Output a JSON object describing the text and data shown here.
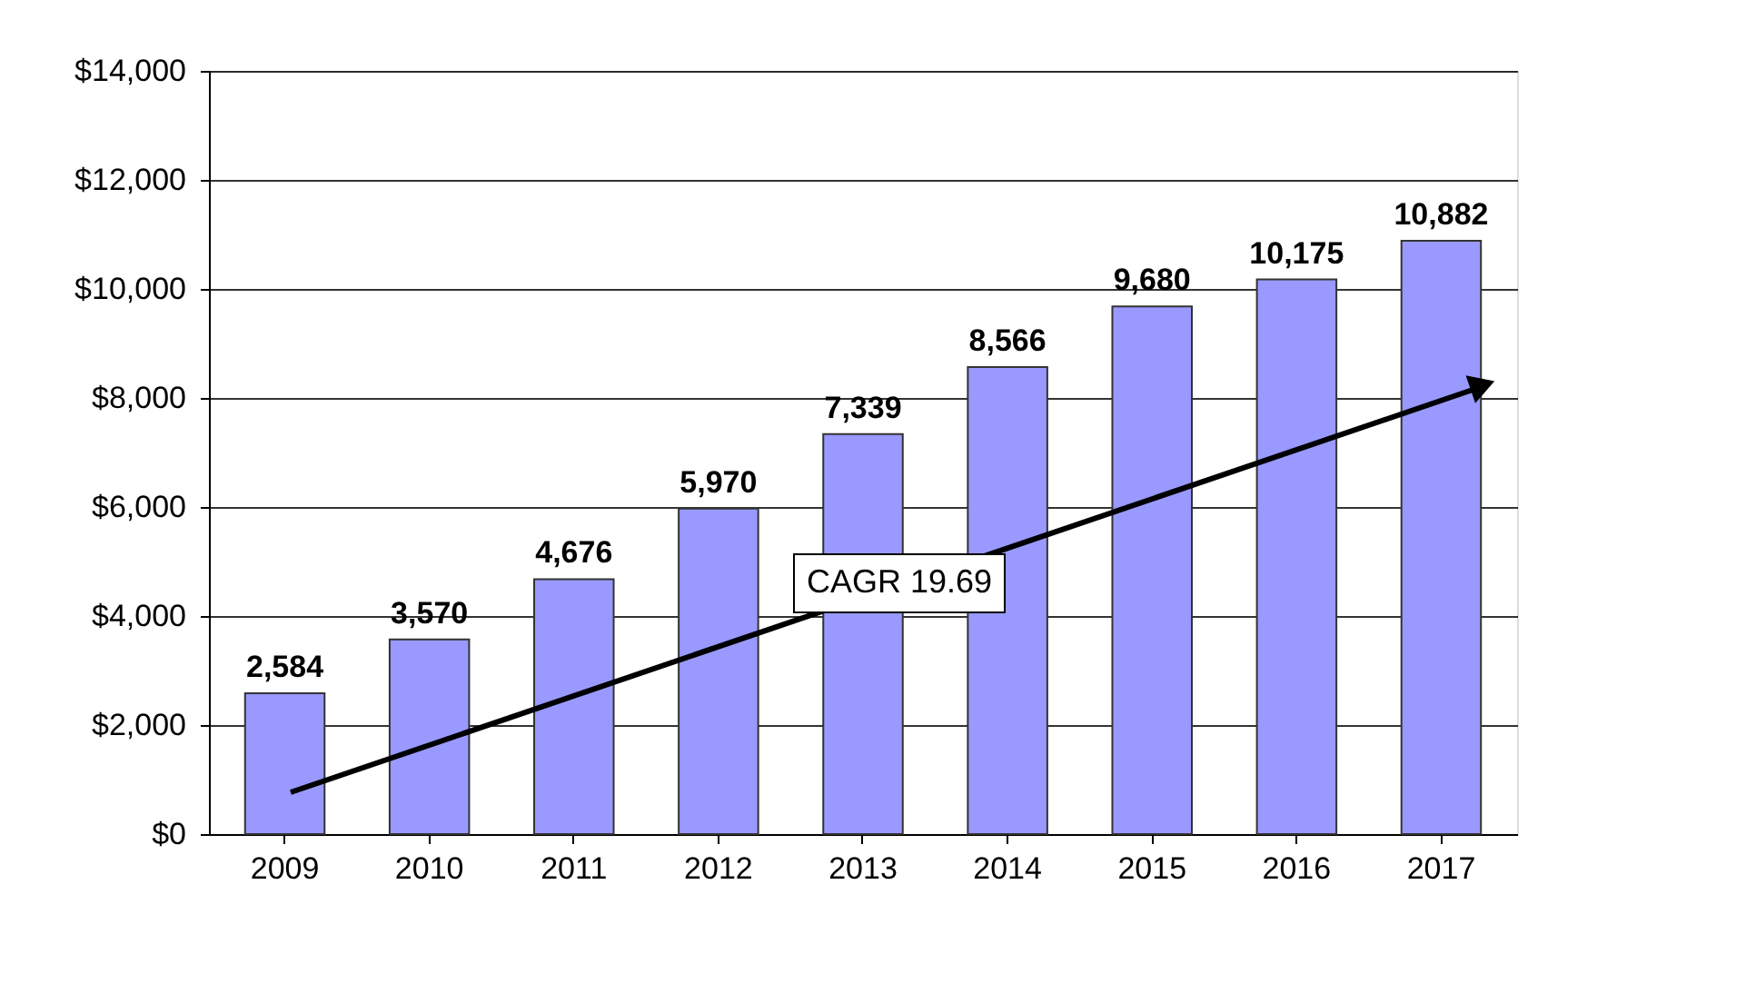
{
  "chart_data": {
    "type": "bar",
    "categories": [
      "2009",
      "2010",
      "2011",
      "2012",
      "2013",
      "2014",
      "2015",
      "2016",
      "2017"
    ],
    "values": [
      2584,
      3570,
      4676,
      5970,
      7339,
      8566,
      9680,
      10175,
      10882
    ],
    "color": "#9999ff",
    "value_labels": [
      "2,584",
      "3,570",
      "4,676",
      "5,970",
      "7,339",
      "8,566",
      "9,680",
      "10,175",
      "10,882"
    ],
    "ylim": [
      0,
      14000
    ],
    "yticks": [
      {
        "value": 0,
        "label": "$0"
      },
      {
        "value": 2000,
        "label": "$2,000"
      },
      {
        "value": 4000,
        "label": "$4,000"
      },
      {
        "value": 6000,
        "label": "$6,000"
      },
      {
        "value": 8000,
        "label": "$8,000"
      },
      {
        "value": 10000,
        "label": "$10,000"
      },
      {
        "value": 12000,
        "label": "$12,000"
      },
      {
        "value": 14000,
        "label": "$14,000"
      }
    ],
    "grid": "y",
    "annotations": [
      "CAGR 19.69"
    ]
  }
}
